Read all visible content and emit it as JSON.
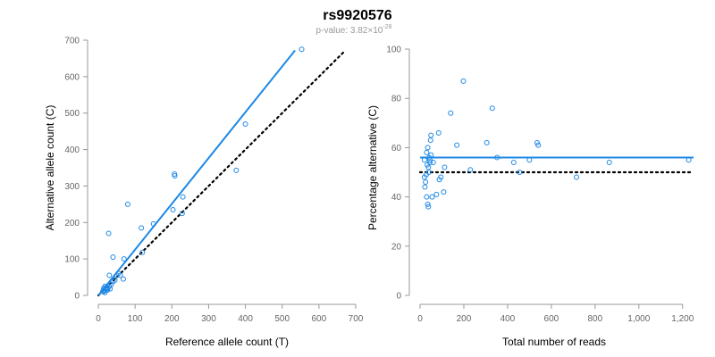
{
  "page": {
    "title": "rs9920576",
    "pvalue": {
      "prefix": "p-value: 3.82×10",
      "exponent": "-28"
    }
  },
  "colors": {
    "points": "#1e88e5",
    "fit": "#1e88e5",
    "reference": "#000000",
    "axis": "#999999",
    "tick_text": "#666666"
  },
  "chart_data": [
    {
      "type": "scatter",
      "title": "",
      "xlabel": "Reference allele count (T)",
      "ylabel": "Alternative allele count (C)",
      "xlim": [
        0,
        700
      ],
      "ylim": [
        0,
        700
      ],
      "xticks": [
        0,
        100,
        200,
        300,
        400,
        500,
        600,
        700
      ],
      "yticks": [
        0,
        100,
        200,
        300,
        400,
        500,
        600,
        700
      ],
      "xtick_labels": [
        "0",
        "100",
        "200",
        "300",
        "400",
        "500",
        "600",
        "700"
      ],
      "ytick_labels": [
        "0",
        "100",
        "200",
        "300",
        "400",
        "500",
        "600",
        "700"
      ],
      "grid": false,
      "points": [
        [
          553,
          675
        ],
        [
          400,
          470
        ],
        [
          375,
          343
        ],
        [
          230,
          270
        ],
        [
          228,
          225
        ],
        [
          207,
          333
        ],
        [
          208,
          328
        ],
        [
          203,
          235
        ],
        [
          150,
          196
        ],
        [
          117,
          185
        ],
        [
          120,
          118
        ],
        [
          80,
          250
        ],
        [
          70,
          100
        ],
        [
          68,
          45
        ],
        [
          55,
          60
        ],
        [
          50,
          55
        ],
        [
          45,
          42
        ],
        [
          40,
          38
        ],
        [
          35,
          30
        ],
        [
          30,
          25
        ],
        [
          28,
          170
        ],
        [
          40,
          105
        ],
        [
          30,
          55
        ],
        [
          25,
          15
        ],
        [
          22,
          22
        ],
        [
          20,
          18
        ],
        [
          18,
          25
        ],
        [
          16,
          12
        ],
        [
          15,
          20
        ],
        [
          14,
          14
        ],
        [
          12,
          10
        ],
        [
          18,
          8
        ],
        [
          22,
          16
        ],
        [
          26,
          20
        ],
        [
          32,
          18
        ],
        [
          60,
          55
        ]
      ],
      "fit_line": [
        [
          0,
          0
        ],
        [
          535,
          672
        ]
      ],
      "reference_line": [
        [
          0,
          0
        ],
        [
          672,
          672
        ]
      ]
    },
    {
      "type": "scatter",
      "title": "",
      "xlabel": "Total number of reads",
      "ylabel": "Percentage alternative (C)",
      "xlim": [
        0,
        1250
      ],
      "ylim": [
        0,
        100
      ],
      "xticks": [
        0,
        200,
        400,
        600,
        800,
        1000,
        1200
      ],
      "yticks": [
        0,
        20,
        40,
        60,
        80,
        100
      ],
      "xtick_labels": [
        "0",
        "200",
        "400",
        "600",
        "800",
        "1,000",
        "1,200"
      ],
      "ytick_labels": [
        "0",
        "20",
        "40",
        "60",
        "80",
        "100"
      ],
      "grid": false,
      "points": [
        [
          1228,
          55
        ],
        [
          865,
          54
        ],
        [
          715,
          48
        ],
        [
          540,
          61
        ],
        [
          535,
          62
        ],
        [
          500,
          55
        ],
        [
          455,
          50
        ],
        [
          428,
          54
        ],
        [
          352,
          56
        ],
        [
          330,
          76
        ],
        [
          305,
          62
        ],
        [
          230,
          51
        ],
        [
          198,
          87
        ],
        [
          168,
          61
        ],
        [
          140,
          74
        ],
        [
          112,
          52
        ],
        [
          108,
          42
        ],
        [
          95,
          48
        ],
        [
          85,
          66
        ],
        [
          88,
          47
        ],
        [
          75,
          41
        ],
        [
          60,
          54
        ],
        [
          55,
          40
        ],
        [
          50,
          65
        ],
        [
          48,
          63
        ],
        [
          45,
          55
        ],
        [
          42,
          56
        ],
        [
          40,
          50
        ],
        [
          38,
          52
        ],
        [
          35,
          60
        ],
        [
          33,
          53
        ],
        [
          30,
          58
        ],
        [
          28,
          49
        ],
        [
          25,
          46
        ],
        [
          22,
          44
        ],
        [
          20,
          48
        ],
        [
          20,
          55
        ],
        [
          30,
          40
        ],
        [
          35,
          37
        ],
        [
          38,
          36
        ],
        [
          45,
          54
        ],
        [
          50,
          57
        ]
      ],
      "fit_line": [
        [
          0,
          56
        ],
        [
          1250,
          56
        ]
      ],
      "reference_line": [
        [
          0,
          50
        ],
        [
          1250,
          50
        ]
      ]
    }
  ]
}
